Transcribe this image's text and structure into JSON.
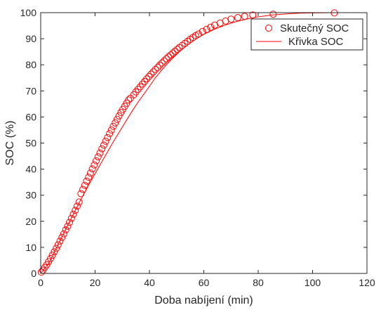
{
  "chart_data": {
    "type": "scatter",
    "title": "",
    "xlabel": "Doba nabíjení (min)",
    "ylabel": "SOC (%)",
    "xlim": [
      0,
      120
    ],
    "ylim": [
      0,
      100
    ],
    "xticks": [
      0,
      20,
      40,
      60,
      80,
      100,
      120
    ],
    "yticks": [
      0,
      10,
      20,
      30,
      40,
      50,
      60,
      70,
      80,
      90,
      100
    ],
    "grid": false,
    "legend_position": "top-right",
    "series_color": "#ff0000",
    "series": [
      {
        "name": "Skutečný SOC",
        "type": "scatter",
        "marker": "circle-open",
        "x": [
          0.2,
          0.8,
          1.5,
          2.2,
          2.9,
          3.6,
          4.3,
          5.0,
          5.7,
          6.4,
          7.1,
          7.8,
          8.5,
          9.2,
          9.9,
          10.6,
          11.3,
          12.0,
          12.7,
          13.4,
          14.1,
          14.8,
          15.5,
          16.2,
          16.9,
          17.6,
          18.3,
          19.0,
          19.7,
          20.4,
          21.1,
          21.8,
          22.5,
          23.2,
          23.9,
          24.6,
          25.3,
          26.0,
          26.7,
          27.4,
          28.1,
          28.8,
          29.5,
          30.2,
          30.9,
          31.6,
          32.3,
          33.0,
          34.2,
          35.0,
          35.8,
          36.6,
          37.4,
          38.2,
          39.0,
          39.8,
          40.6,
          41.4,
          42.2,
          43.0,
          43.8,
          44.6,
          45.4,
          46.2,
          47.0,
          47.8,
          48.6,
          49.4,
          50.2,
          51.0,
          52.0,
          53.0,
          54.0,
          55.0,
          56.0,
          57.0,
          58.0,
          59.5,
          61.0,
          62.5,
          64.0,
          66.0,
          68.0,
          70.0,
          72.5,
          75.0,
          78.0,
          85.5,
          108.0
        ],
        "y": [
          0.5,
          1.2,
          2.3,
          3.3,
          4.5,
          5.7,
          7.0,
          8.3,
          9.6,
          11.0,
          12.4,
          13.8,
          15.2,
          16.7,
          18.1,
          19.6,
          21.1,
          22.7,
          24.2,
          25.8,
          27.4,
          30.6,
          32.2,
          33.8,
          35.4,
          36.9,
          38.5,
          40.1,
          41.6,
          43.2,
          44.7,
          46.2,
          47.8,
          49.2,
          50.7,
          52.1,
          53.6,
          55.0,
          56.4,
          57.7,
          59.1,
          60.4,
          61.7,
          62.9,
          64.1,
          65.3,
          66.5,
          67.2,
          68.5,
          69.6,
          70.6,
          71.6,
          72.6,
          73.6,
          74.6,
          75.5,
          76.4,
          77.3,
          78.2,
          79.0,
          79.9,
          80.7,
          81.5,
          82.3,
          83.1,
          83.8,
          84.5,
          85.2,
          85.9,
          86.6,
          87.4,
          88.2,
          89.0,
          89.8,
          90.5,
          91.2,
          91.8,
          92.8,
          93.6,
          94.4,
          95.2,
          96.0,
          96.8,
          97.5,
          98.1,
          98.6,
          99.1,
          99.4,
          99.9
        ]
      },
      {
        "name": "Křivka SOC",
        "type": "line",
        "x": [
          0,
          3,
          6,
          9,
          12,
          15,
          18,
          21,
          24,
          27,
          30,
          33,
          36,
          39,
          42,
          45,
          48,
          51,
          54,
          57,
          60,
          64,
          68,
          72,
          76,
          80,
          85,
          90,
          95,
          100,
          108
        ],
        "y": [
          0.0,
          4.0,
          10.2,
          16.5,
          22.7,
          28.8,
          34.6,
          40.1,
          45.6,
          51.0,
          56.1,
          61.2,
          66.0,
          70.3,
          74.8,
          78.6,
          82.0,
          85.0,
          87.6,
          89.8,
          91.7,
          93.7,
          95.3,
          96.6,
          97.6,
          98.4,
          99.1,
          99.5,
          99.8,
          99.9,
          100.0
        ]
      }
    ]
  }
}
